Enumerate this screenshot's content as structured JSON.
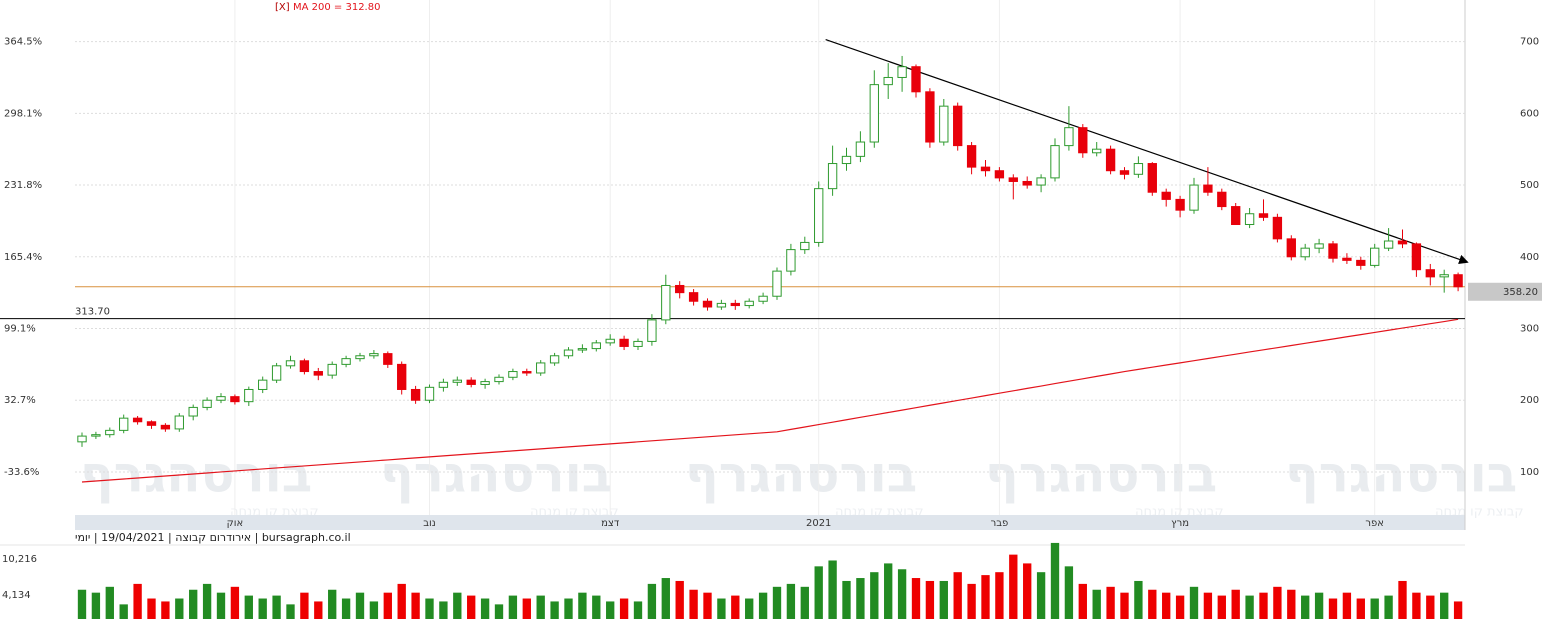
{
  "chart_data": {
    "type": "candlestick",
    "close_button": "[X]",
    "ma_label": "MA 200 = 312.80",
    "info": "bursagraph.co.il | אירודרום קבוצה | 19/04/2021 | יומי",
    "watermark": "בורסהגרף",
    "watermark_sub": "קבוצת קו מנחה",
    "up_color": "#2e9a2e",
    "down_color": "#e8000b",
    "categories": [
      null,
      null,
      null,
      null,
      null,
      null,
      null,
      null,
      null,
      null,
      null,
      "אוק",
      null,
      null,
      null,
      null,
      null,
      null,
      null,
      null,
      null,
      null,
      null,
      null,
      null,
      "נוב",
      null,
      null,
      null,
      null,
      null,
      null,
      null,
      null,
      null,
      null,
      null,
      null,
      "דצמ",
      null,
      null,
      null,
      null,
      null,
      null,
      null,
      null,
      null,
      null,
      null,
      null,
      null,
      null,
      "2021",
      null,
      null,
      null,
      null,
      null,
      null,
      null,
      null,
      null,
      null,
      null,
      null,
      "פבר",
      null,
      null,
      null,
      null,
      null,
      null,
      null,
      null,
      null,
      null,
      null,
      null,
      "מרץ",
      null,
      null,
      null,
      null,
      null,
      null,
      null,
      null,
      null,
      null,
      null,
      null,
      null,
      "אפר",
      null,
      null,
      null,
      null,
      null,
      null
    ],
    "open": [
      142,
      150,
      152,
      158,
      175,
      170,
      165,
      160,
      178,
      190,
      200,
      205,
      198,
      215,
      228,
      248,
      255,
      240,
      235,
      250,
      258,
      262,
      265,
      250,
      215,
      200,
      218,
      225,
      228,
      222,
      226,
      232,
      240,
      238,
      252,
      262,
      270,
      272,
      280,
      285,
      275,
      282,
      312,
      360,
      350,
      338,
      330,
      335,
      332,
      338,
      345,
      380,
      410,
      420,
      495,
      530,
      540,
      560,
      640,
      650,
      665,
      630,
      560,
      610,
      555,
      525,
      520,
      510,
      505,
      500,
      510,
      555,
      580,
      545,
      550,
      520,
      515,
      530,
      490,
      480,
      465,
      500,
      490,
      470,
      445,
      460,
      455,
      425,
      400,
      412,
      418,
      398,
      395,
      388,
      412,
      422,
      418,
      382,
      372,
      375
    ],
    "high": [
      155,
      156,
      162,
      180,
      178,
      172,
      168,
      182,
      194,
      204,
      210,
      208,
      219,
      233,
      252,
      262,
      258,
      245,
      254,
      262,
      266,
      270,
      268,
      254,
      220,
      222,
      230,
      233,
      232,
      230,
      236,
      244,
      244,
      256,
      266,
      274,
      278,
      284,
      292,
      290,
      286,
      320,
      375,
      366,
      355,
      342,
      340,
      340,
      342,
      350,
      385,
      418,
      428,
      505,
      555,
      552,
      575,
      660,
      670,
      680,
      668,
      635,
      620,
      615,
      560,
      535,
      525,
      515,
      512,
      515,
      565,
      610,
      585,
      560,
      555,
      525,
      540,
      532,
      495,
      485,
      510,
      525,
      495,
      475,
      468,
      480,
      460,
      430,
      418,
      425,
      422,
      405,
      400,
      418,
      440,
      438,
      420,
      390,
      382,
      378
    ],
    "low": [
      135,
      146,
      148,
      154,
      166,
      160,
      156,
      156,
      172,
      186,
      196,
      194,
      192,
      210,
      224,
      244,
      236,
      228,
      230,
      246,
      254,
      258,
      245,
      208,
      195,
      196,
      212,
      220,
      218,
      216,
      222,
      228,
      234,
      234,
      248,
      258,
      266,
      268,
      276,
      270,
      270,
      276,
      306,
      342,
      332,
      325,
      326,
      326,
      328,
      334,
      340,
      374,
      404,
      414,
      485,
      520,
      532,
      552,
      620,
      630,
      622,
      552,
      555,
      548,
      515,
      512,
      505,
      480,
      495,
      490,
      505,
      548,
      538,
      540,
      515,
      508,
      510,
      485,
      470,
      455,
      460,
      485,
      465,
      450,
      440,
      450,
      420,
      395,
      395,
      405,
      392,
      390,
      382,
      385,
      408,
      412,
      372,
      360,
      350,
      352
    ],
    "close": [
      150,
      152,
      158,
      175,
      170,
      165,
      160,
      178,
      190,
      200,
      205,
      198,
      215,
      228,
      248,
      255,
      240,
      235,
      250,
      258,
      262,
      265,
      250,
      215,
      200,
      218,
      225,
      228,
      222,
      226,
      232,
      240,
      238,
      252,
      262,
      270,
      272,
      280,
      285,
      275,
      282,
      312,
      360,
      350,
      338,
      330,
      335,
      332,
      338,
      345,
      380,
      410,
      420,
      495,
      530,
      540,
      560,
      640,
      650,
      665,
      630,
      560,
      610,
      555,
      525,
      520,
      510,
      505,
      500,
      510,
      555,
      580,
      545,
      550,
      520,
      515,
      530,
      490,
      480,
      465,
      500,
      490,
      470,
      445,
      460,
      455,
      425,
      400,
      412,
      418,
      398,
      395,
      388,
      412,
      422,
      418,
      382,
      372,
      375,
      358.2
    ],
    "volume": [
      5000,
      4500,
      5500,
      2500,
      6000,
      3500,
      3000,
      3500,
      5000,
      6000,
      4500,
      5500,
      4000,
      3500,
      4000,
      2500,
      4500,
      3000,
      5000,
      3500,
      4500,
      3000,
      4500,
      6000,
      4500,
      3500,
      3000,
      4500,
      4000,
      3500,
      2500,
      4000,
      3500,
      4000,
      3000,
      3500,
      4500,
      4000,
      3000,
      3500,
      3000,
      6000,
      7000,
      6500,
      5000,
      4500,
      3500,
      4000,
      3500,
      4500,
      5500,
      6000,
      5500,
      9000,
      10000,
      6500,
      7000,
      8000,
      9500,
      8500,
      7000,
      6500,
      6500,
      8000,
      6000,
      7500,
      8000,
      11000,
      9500,
      8000,
      13000,
      9000,
      6000,
      5000,
      5500,
      4500,
      6500,
      5000,
      4500,
      4000,
      5500,
      4500,
      4000,
      5000,
      4000,
      4500,
      5500,
      5000,
      4000,
      4500,
      3500,
      4500,
      3500,
      3500,
      4000,
      6500,
      4500,
      4000,
      4500,
      3000
    ],
    "ma": {
      "color": "#e3141c",
      "values": [
        86,
        87.4,
        88.8,
        90.2,
        91.6,
        93,
        94.4,
        95.8,
        97.2,
        98.6,
        100,
        101.4,
        102.8,
        104.2,
        105.6,
        107,
        108.4,
        109.8,
        111.2,
        112.6,
        114,
        115.4,
        116.8,
        118.2,
        119.6,
        121,
        122.4,
        123.8,
        125.2,
        126.6,
        128,
        129.4,
        130.8,
        132.2,
        133.6,
        135,
        136.4,
        137.8,
        139.2,
        140.6,
        142,
        143.4,
        144.8,
        146.2,
        147.6,
        149,
        150.4,
        151.8,
        153.2,
        154.6,
        156,
        159.4,
        162.7,
        166.1,
        169.4,
        172.8,
        176.2,
        179.5,
        182.9,
        186.2,
        189.6,
        193,
        196.3,
        199.7,
        203,
        206.4,
        209.8,
        213.1,
        216.5,
        219.8,
        223.2,
        226.6,
        229.9,
        233.3,
        236.6,
        240,
        243,
        246.1,
        249.1,
        252.1,
        255.1,
        258.2,
        261.2,
        264.2,
        267.3,
        270.3,
        273.3,
        276.3,
        279.4,
        282.4,
        285.4,
        288.5,
        291.5,
        294.5,
        297.6,
        300.6,
        303.6,
        306.7,
        309.7,
        312.8
      ]
    },
    "ylim": [
      40,
      758
    ],
    "yticks": [
      100,
      200,
      300,
      400,
      500,
      600,
      700
    ],
    "left_ticks": [
      {
        "value": 700,
        "label": "364.5%"
      },
      {
        "value": 600,
        "label": "298.1%"
      },
      {
        "value": 500,
        "label": "231.8%"
      },
      {
        "value": 400,
        "label": "165.4%"
      },
      {
        "value": 300,
        "label": "99.1%"
      },
      {
        "value": 200,
        "label": "32.7%"
      },
      {
        "value": 100,
        "label": "-33.6%"
      }
    ],
    "hline": {
      "value": 313.7,
      "label": "313.70",
      "color": "#000000"
    },
    "last_price": {
      "value": 358.2,
      "label": "358.20",
      "color": "#d9913f"
    },
    "trendline": {
      "x": [
        53.5,
        99.6
      ],
      "values": [
        702.8,
        393
      ],
      "color": "#000000"
    },
    "volume_ylim": [
      0,
      13500
    ],
    "volume_ticks": [
      {
        "value": 10216,
        "label": "10,216"
      },
      {
        "value": 4134,
        "label": "4,134"
      }
    ],
    "grid": true
  }
}
